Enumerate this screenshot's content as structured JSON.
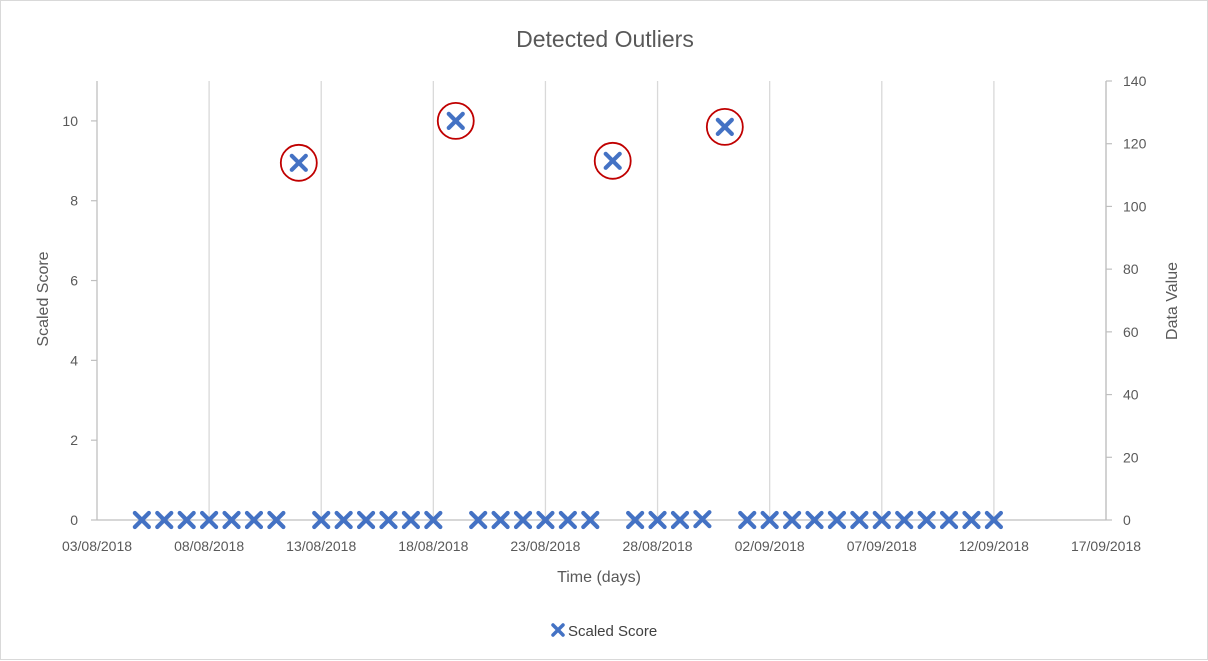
{
  "chart_data": {
    "type": "scatter",
    "title": "Detected Outliers",
    "xlabel": "Time (days)",
    "ylabel": "Scaled Score",
    "y2label": "Data Value",
    "x_ticks": [
      "03/08/2018",
      "08/08/2018",
      "13/08/2018",
      "18/08/2018",
      "23/08/2018",
      "28/08/2018",
      "02/09/2018",
      "07/09/2018",
      "12/09/2018",
      "17/09/2018"
    ],
    "xlim": [
      "03/08/2018",
      "17/09/2018"
    ],
    "y_ticks": [
      0,
      2,
      4,
      6,
      8,
      10
    ],
    "ylim": [
      0,
      11
    ],
    "y2_ticks": [
      0,
      20,
      40,
      60,
      80,
      100,
      120,
      140
    ],
    "y2lim": [
      0,
      140
    ],
    "grid": "vertical",
    "legend_position": "bottom",
    "series": [
      {
        "name": "Scaled Score",
        "color": "#4472C4",
        "marker": "x",
        "points": [
          {
            "x": "05/08/2018",
            "y": 0
          },
          {
            "x": "06/08/2018",
            "y": 0
          },
          {
            "x": "07/08/2018",
            "y": 0
          },
          {
            "x": "08/08/2018",
            "y": 0
          },
          {
            "x": "09/08/2018",
            "y": 0
          },
          {
            "x": "10/08/2018",
            "y": 0
          },
          {
            "x": "11/08/2018",
            "y": 0
          },
          {
            "x": "12/08/2018",
            "y": 8.95
          },
          {
            "x": "13/08/2018",
            "y": 0
          },
          {
            "x": "14/08/2018",
            "y": 0
          },
          {
            "x": "15/08/2018",
            "y": 0
          },
          {
            "x": "16/08/2018",
            "y": 0
          },
          {
            "x": "17/08/2018",
            "y": 0
          },
          {
            "x": "18/08/2018",
            "y": 0
          },
          {
            "x": "19/08/2018",
            "y": 10.0
          },
          {
            "x": "20/08/2018",
            "y": 0
          },
          {
            "x": "21/08/2018",
            "y": 0
          },
          {
            "x": "22/08/2018",
            "y": 0
          },
          {
            "x": "23/08/2018",
            "y": 0
          },
          {
            "x": "24/08/2018",
            "y": 0
          },
          {
            "x": "25/08/2018",
            "y": 0
          },
          {
            "x": "26/08/2018",
            "y": 9.0
          },
          {
            "x": "27/08/2018",
            "y": 0
          },
          {
            "x": "28/08/2018",
            "y": 0
          },
          {
            "x": "29/08/2018",
            "y": 0
          },
          {
            "x": "30/08/2018",
            "y": 0.02
          },
          {
            "x": "31/08/2018",
            "y": 9.85
          },
          {
            "x": "01/09/2018",
            "y": 0
          },
          {
            "x": "02/09/2018",
            "y": 0
          },
          {
            "x": "03/09/2018",
            "y": 0
          },
          {
            "x": "04/09/2018",
            "y": 0
          },
          {
            "x": "05/09/2018",
            "y": 0
          },
          {
            "x": "06/09/2018",
            "y": 0
          },
          {
            "x": "07/09/2018",
            "y": 0
          },
          {
            "x": "08/09/2018",
            "y": 0
          },
          {
            "x": "09/09/2018",
            "y": 0
          },
          {
            "x": "10/09/2018",
            "y": 0
          },
          {
            "x": "11/09/2018",
            "y": 0
          },
          {
            "x": "12/09/2018",
            "y": 0
          }
        ]
      }
    ],
    "highlighted_outliers": [
      "12/08/2018",
      "19/08/2018",
      "26/08/2018",
      "31/08/2018"
    ],
    "highlight_color": "#C00000"
  }
}
